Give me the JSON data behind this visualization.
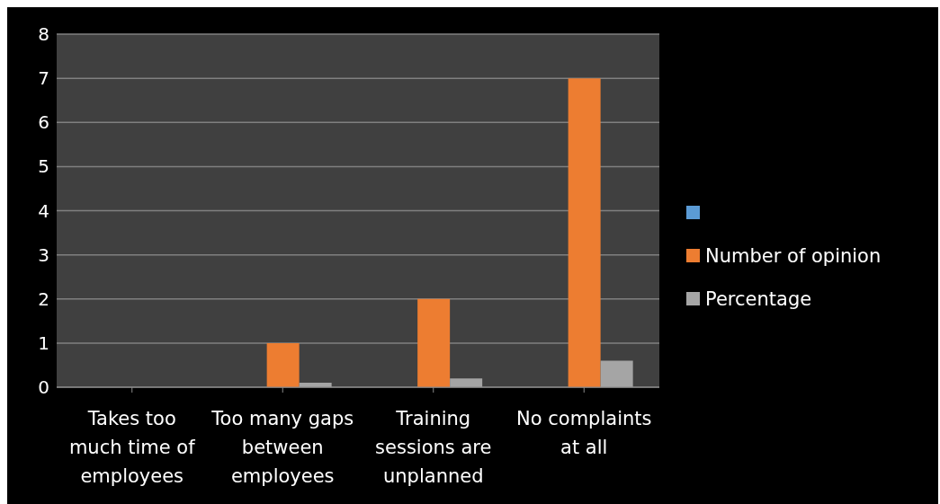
{
  "chart_data": {
    "type": "bar",
    "categories": [
      "Takes too much time of employees",
      "Too many gaps between employees",
      "Training sessions are unplanned",
      "No complaints at all"
    ],
    "series": [
      {
        "color": "#5b9bd5",
        "values": [
          0,
          0,
          0,
          0
        ]
      },
      {
        "name": "Number of opinion",
        "color": "#ed7d31",
        "values": [
          0,
          1,
          2,
          7
        ]
      },
      {
        "name": "Percentage",
        "color": "#a5a5a5",
        "values": [
          0,
          0.1,
          0.2,
          0.6
        ]
      }
    ],
    "ylim": [
      0,
      8
    ],
    "yticks": [
      0,
      1,
      2,
      3,
      4,
      5,
      6,
      7,
      8
    ],
    "grid": "y",
    "legend": "right"
  }
}
